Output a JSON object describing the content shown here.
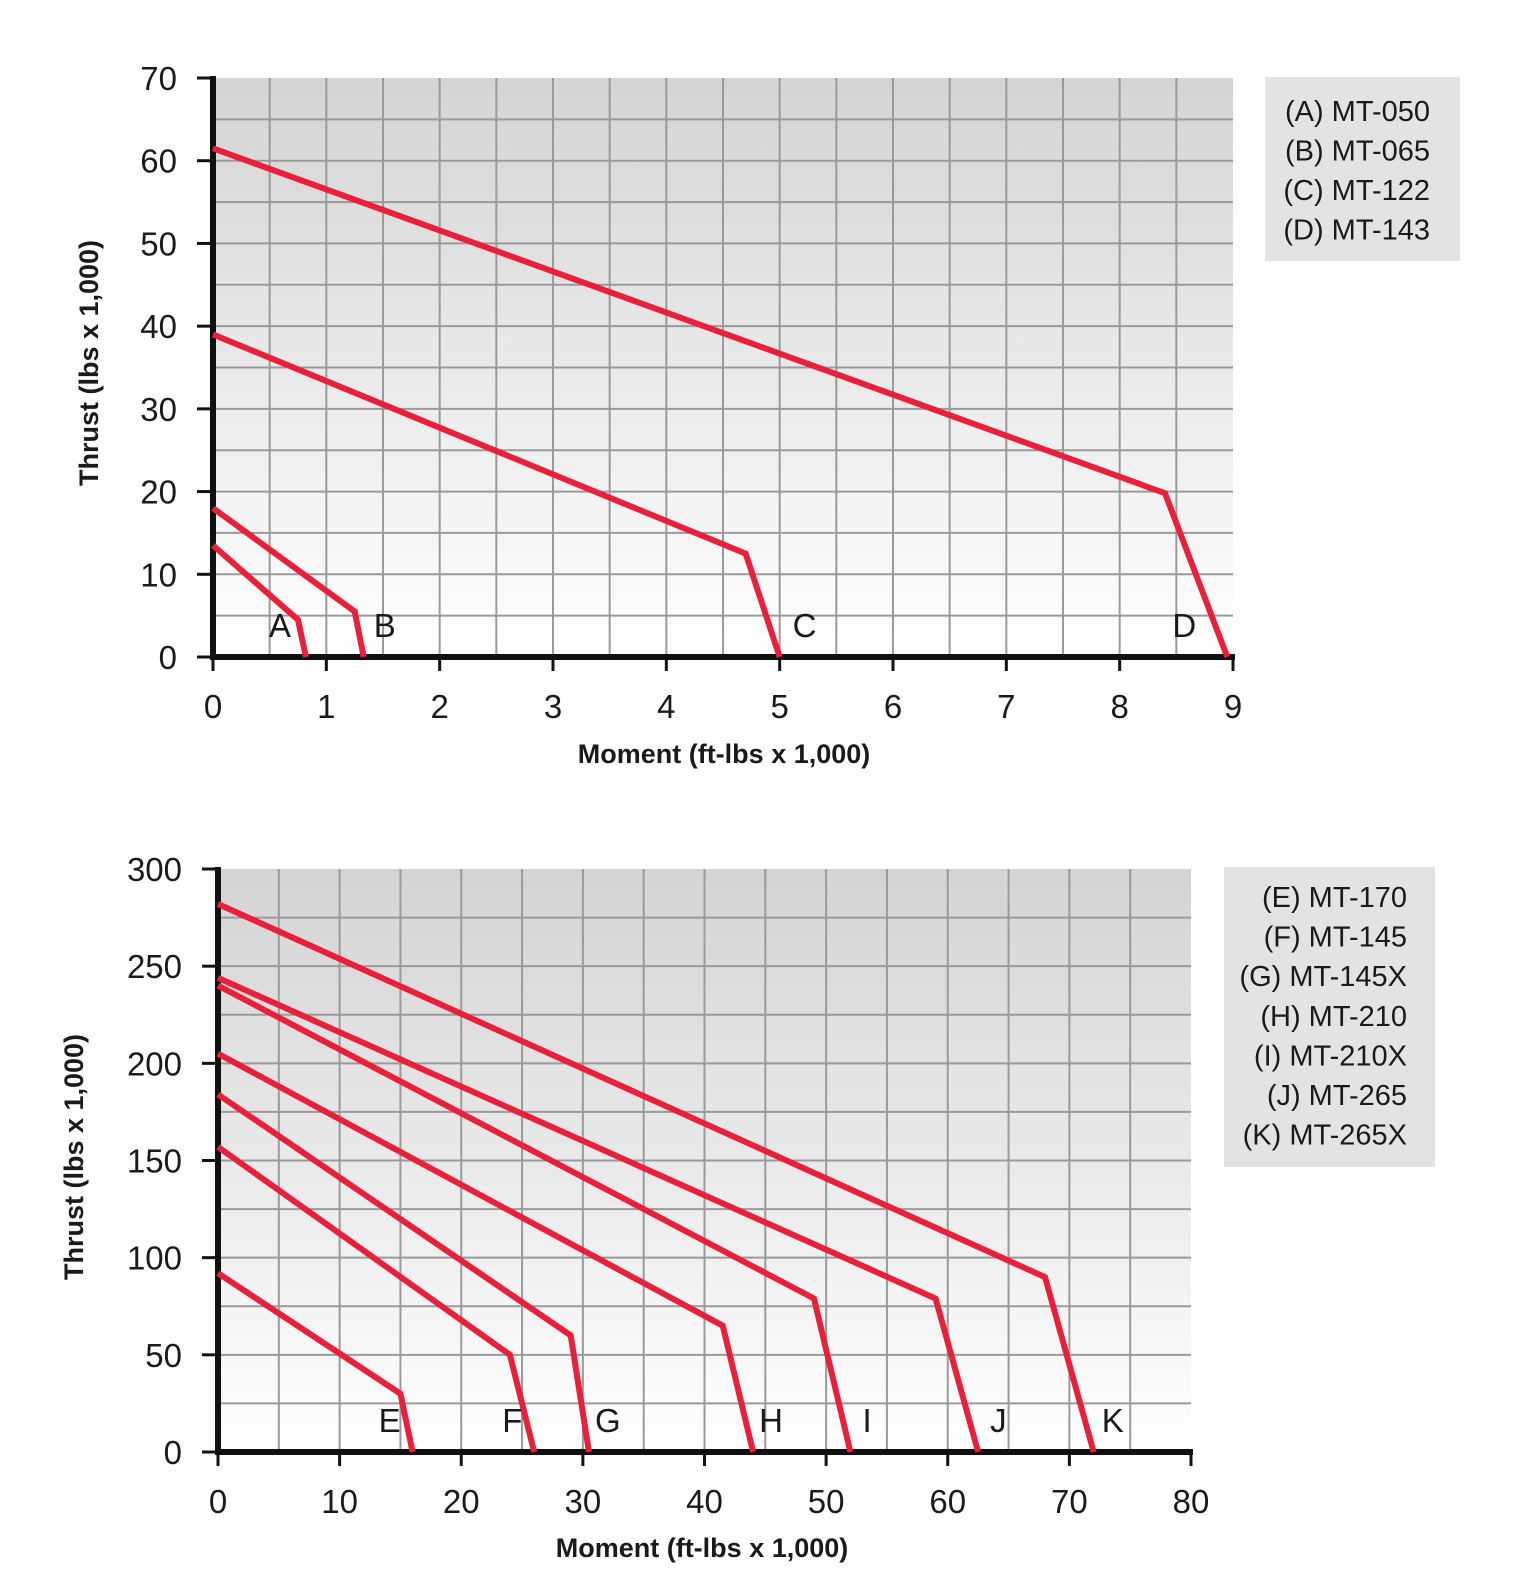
{
  "chart_data": [
    {
      "type": "line",
      "xlabel": "Moment (ft-lbs x 1,000)",
      "ylabel": "Thrust (lbs x 1,000)",
      "xlim": [
        0,
        9
      ],
      "ylim": [
        0,
        70
      ],
      "x_ticks": [
        0,
        1,
        2,
        3,
        4,
        5,
        6,
        7,
        8,
        9
      ],
      "y_ticks": [
        0,
        10,
        20,
        30,
        40,
        50,
        60,
        70
      ],
      "grid": true,
      "legend_position": "right",
      "legend": [
        "(A) MT-050",
        "(B) MT-065",
        "(C) MT-122",
        "(D) MT-143"
      ],
      "series_color": "#e8203a",
      "series": [
        {
          "label": "A",
          "points": [
            [
              0,
              13.5
            ],
            [
              0.75,
              4.5
            ],
            [
              0.82,
              0
            ]
          ]
        },
        {
          "label": "B",
          "points": [
            [
              0,
              18
            ],
            [
              1.25,
              5.5
            ],
            [
              1.33,
              0
            ]
          ]
        },
        {
          "label": "C",
          "points": [
            [
              0,
              39
            ],
            [
              4.7,
              12.5
            ],
            [
              5.0,
              0
            ]
          ]
        },
        {
          "label": "D",
          "points": [
            [
              0,
              61.5
            ],
            [
              8.4,
              19.8
            ],
            [
              8.95,
              0
            ]
          ]
        }
      ]
    },
    {
      "type": "line",
      "xlabel": "Moment (ft-lbs x 1,000)",
      "ylabel": "Thrust (lbs x 1,000)",
      "xlim": [
        0,
        80
      ],
      "ylim": [
        0,
        300
      ],
      "x_ticks": [
        0,
        10,
        20,
        30,
        40,
        50,
        60,
        70,
        80
      ],
      "y_ticks": [
        0,
        50,
        100,
        150,
        200,
        250,
        300
      ],
      "grid": true,
      "legend_position": "right",
      "legend": [
        "(E) MT-170",
        "(F) MT-145",
        "(G) MT-145X",
        "(H) MT-210",
        "(I) MT-210X",
        "(J) MT-265",
        "(K) MT-265X"
      ],
      "series_color": "#e8203a",
      "series": [
        {
          "label": "E",
          "points": [
            [
              0,
              92
            ],
            [
              15,
              30
            ],
            [
              16,
              0
            ]
          ]
        },
        {
          "label": "F",
          "points": [
            [
              0,
              157
            ],
            [
              24,
              50
            ],
            [
              26,
              0
            ]
          ]
        },
        {
          "label": "G",
          "points": [
            [
              0,
              184
            ],
            [
              29,
              60
            ],
            [
              30.5,
              0
            ]
          ]
        },
        {
          "label": "H",
          "points": [
            [
              0,
              205
            ],
            [
              41.5,
              65
            ],
            [
              44,
              0
            ]
          ]
        },
        {
          "label": "I",
          "points": [
            [
              0,
              240
            ],
            [
              49,
              79
            ],
            [
              52,
              0
            ]
          ]
        },
        {
          "label": "J",
          "points": [
            [
              0,
              244
            ],
            [
              59,
              79
            ],
            [
              62.5,
              0
            ]
          ]
        },
        {
          "label": "K",
          "points": [
            [
              0,
              282
            ],
            [
              68,
              90
            ],
            [
              72,
              0
            ]
          ]
        }
      ]
    }
  ]
}
